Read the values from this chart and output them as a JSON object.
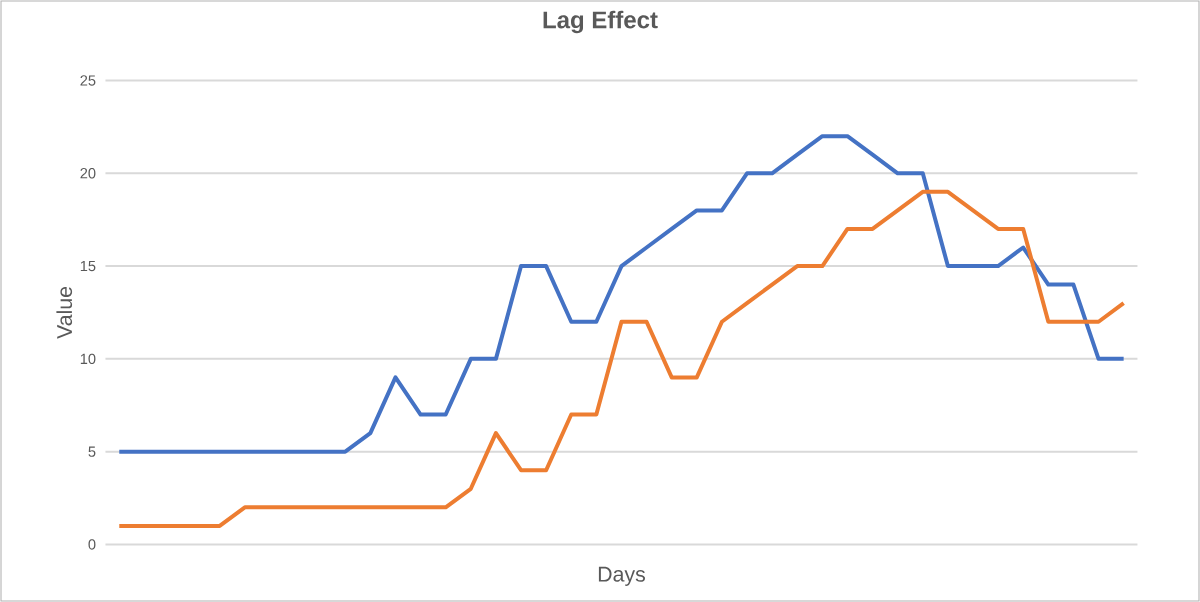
{
  "chart_data": {
    "type": "line",
    "title": "Lag Effect",
    "xlabel": "Days",
    "ylabel": "Value",
    "categories": [
      null,
      null,
      null,
      null,
      null,
      null,
      null,
      null,
      null,
      null,
      null,
      null,
      null,
      null,
      null,
      null,
      null,
      null,
      null,
      null,
      null,
      null,
      null,
      null,
      null,
      null,
      null,
      null,
      null,
      null,
      null,
      null,
      null,
      null,
      null,
      null,
      null,
      null,
      null,
      null,
      null
    ],
    "series": [
      {
        "color": "#4472c4",
        "values": [
          5,
          5,
          5,
          5,
          5,
          5,
          5,
          5,
          5,
          5,
          6,
          9,
          7,
          7,
          10,
          10,
          15,
          15,
          12,
          12,
          15,
          16,
          17,
          18,
          18,
          20,
          20,
          21,
          22,
          22,
          21,
          20,
          20,
          15,
          15,
          15,
          16,
          14,
          14,
          10,
          10
        ]
      },
      {
        "color": "#ed7d31",
        "values": [
          1,
          1,
          1,
          1,
          1,
          2,
          2,
          2,
          2,
          2,
          2,
          2,
          2,
          2,
          3,
          6,
          4,
          4,
          7,
          7,
          12,
          12,
          9,
          9,
          12,
          13,
          14,
          15,
          15,
          17,
          17,
          18,
          19,
          19,
          18,
          17,
          17,
          12,
          12,
          12,
          13
        ]
      }
    ],
    "ylim": [
      0,
      25
    ],
    "yticks": [
      0,
      5,
      10,
      15,
      20,
      25
    ],
    "grid": "y",
    "tick_labels": "y",
    "marker": "none",
    "line_style": "solid"
  }
}
